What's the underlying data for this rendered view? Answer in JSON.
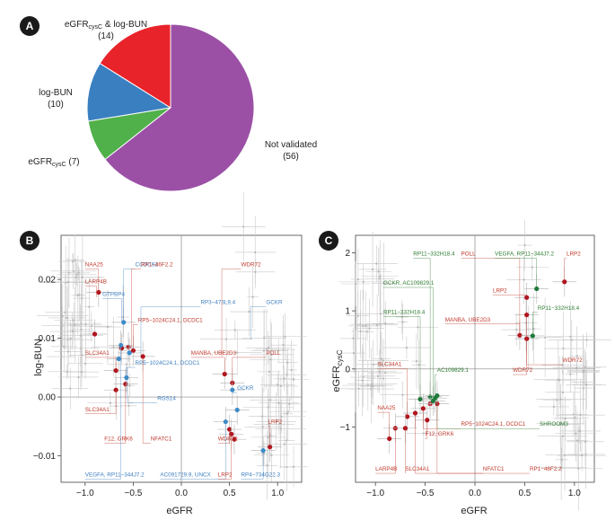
{
  "colors": {
    "red": "#e8232a",
    "blue": "#3a7fc0",
    "green": "#50b04a",
    "purple": "#9b50a6",
    "dark_red": "#b0141e",
    "mid_blue": "#3e8cc8",
    "dark_green": "#1d7a3a",
    "red_label": "#c0392b",
    "blue_label": "#3e7fbf",
    "green_label": "#2e7d32",
    "panel_badge": "#1a1a1a"
  },
  "chart_data": [
    {
      "panel": "A",
      "type": "pie",
      "slices": [
        {
          "key": "eGFRcysC & log-BUN",
          "label_main": "eGFR",
          "label_sub": "cysC",
          "label_tail": " & log-BUN",
          "count_label": "(14)",
          "value": 14,
          "color": "#e8232a"
        },
        {
          "key": "log-BUN",
          "label_main": "log-BUN",
          "label_sub": "",
          "label_tail": "",
          "count_label": "(10)",
          "value": 10,
          "color": "#3a7fc0"
        },
        {
          "key": "eGFRcysC",
          "label_main": "eGFR",
          "label_sub": "cysC",
          "label_tail": " (7)",
          "count_label": "",
          "value": 7,
          "color": "#50b04a"
        },
        {
          "key": "Not validated",
          "label_main": "Not validated",
          "label_sub": "",
          "label_tail": "",
          "count_label": "(56)",
          "value": 56,
          "color": "#9b50a6"
        }
      ]
    },
    {
      "panel": "B",
      "type": "scatter",
      "xlabel": "eGFR",
      "ylabel": "log-BUN",
      "xlim": [
        -1.25,
        1.25
      ],
      "ylim": [
        -0.0145,
        0.0275
      ],
      "xticks": [
        -1.0,
        -0.5,
        0.0,
        0.5,
        1.0
      ],
      "xtick_labels": [
        "−1.0",
        "−0.5",
        "0.0",
        "0.5",
        "1.0"
      ],
      "yticks": [
        -0.01,
        0.0,
        0.01,
        0.02
      ],
      "ytick_labels": [
        "−0.01",
        "0.00",
        "0.01",
        "0.02"
      ],
      "points": [
        {
          "x": -0.86,
          "y": 0.0178,
          "group": "red"
        },
        {
          "x": -0.9,
          "y": 0.0107,
          "group": "red"
        },
        {
          "x": -0.55,
          "y": 0.0085,
          "group": "red"
        },
        {
          "x": -0.5,
          "y": 0.0079,
          "group": "red"
        },
        {
          "x": -0.4,
          "y": 0.0069,
          "group": "red"
        },
        {
          "x": -0.62,
          "y": 0.0083,
          "group": "red"
        },
        {
          "x": -0.68,
          "y": 0.0045,
          "group": "red"
        },
        {
          "x": -0.58,
          "y": 0.0022,
          "group": "red"
        },
        {
          "x": -0.68,
          "y": 0.0012,
          "group": "red"
        },
        {
          "x": 0.45,
          "y": 0.0039,
          "group": "red"
        },
        {
          "x": 0.53,
          "y": 0.0024,
          "group": "red"
        },
        {
          "x": 0.5,
          "y": -0.0055,
          "group": "red"
        },
        {
          "x": 0.52,
          "y": -0.0063,
          "group": "red"
        },
        {
          "x": 0.55,
          "y": -0.0072,
          "group": "red"
        },
        {
          "x": 0.92,
          "y": -0.0085,
          "group": "red"
        },
        {
          "x": -0.6,
          "y": 0.0127,
          "group": "blue"
        },
        {
          "x": -0.63,
          "y": 0.0088,
          "group": "blue"
        },
        {
          "x": -0.54,
          "y": 0.0075,
          "group": "blue"
        },
        {
          "x": -0.65,
          "y": 0.0065,
          "group": "blue"
        },
        {
          "x": -0.57,
          "y": 0.0033,
          "group": "blue"
        },
        {
          "x": 0.46,
          "y": -0.0042,
          "group": "blue"
        },
        {
          "x": 0.53,
          "y": 0.0012,
          "group": "blue"
        },
        {
          "x": 0.58,
          "y": -0.0022,
          "group": "blue"
        },
        {
          "x": 0.85,
          "y": -0.0091,
          "group": "blue"
        }
      ],
      "labels": [
        {
          "text": "NAA25",
          "group": "red",
          "x": -1.0,
          "y": 0.0222,
          "px": -0.86,
          "py": 0.0178
        },
        {
          "text": "LARP4B",
          "group": "red",
          "x": -1.0,
          "y": 0.0193,
          "px": -0.88,
          "py": 0.017
        },
        {
          "text": "CCDC63",
          "group": "blue",
          "x": -0.48,
          "y": 0.0222,
          "px": -0.6,
          "py": 0.0127
        },
        {
          "text": "RP1−46F2.2",
          "group": "red",
          "x": -0.42,
          "y": 0.0222,
          "px": -0.52,
          "py": 0.0085
        },
        {
          "text": "GTPBP4",
          "group": "blue",
          "x": -0.82,
          "y": 0.0172,
          "px": -0.62,
          "py": 0.0129
        },
        {
          "text": "RP5−1024C24.1, DCDC1",
          "group": "red",
          "x": -0.45,
          "y": 0.0128,
          "px": -0.5,
          "py": 0.0079
        },
        {
          "text": "RP3−473L9.4",
          "group": "blue",
          "x": 0.2,
          "y": 0.0158,
          "px": -0.42,
          "py": 0.007
        },
        {
          "text": "GCKR",
          "group": "blue",
          "x": 0.88,
          "y": 0.0158,
          "px": 0.72,
          "py": 0.0098
        },
        {
          "text": "WDR72",
          "group": "red",
          "x": 0.62,
          "y": 0.0222,
          "px": 0.42,
          "py": 0.0069
        },
        {
          "text": "MANBA, UBE2D3",
          "group": "red",
          "x": 0.1,
          "y": 0.0072,
          "px": 0.45,
          "py": 0.0039
        },
        {
          "text": "POLL",
          "group": "red",
          "x": 0.88,
          "y": 0.0072,
          "px": 0.53,
          "py": 0.0024
        },
        {
          "text": "SLC34A1",
          "group": "red",
          "x": -1.0,
          "y": 0.0072,
          "px": -0.68,
          "py": 0.0045
        },
        {
          "text": "RP5−1024C24.1, DCDC1",
          "group": "blue",
          "x": -0.48,
          "y": 0.0055,
          "px": -0.57,
          "py": 0.0033
        },
        {
          "text": "GCKR",
          "group": "blue",
          "x": 0.58,
          "y": 0.0012,
          "px": 0.53,
          "py": 0.0012
        },
        {
          "text": "RGS14",
          "group": "blue",
          "x": -0.25,
          "y": -0.0005,
          "px": -0.56,
          "py": 0.005
        },
        {
          "text": "SLC34A1",
          "group": "red",
          "x": -1.0,
          "y": -0.0024,
          "px": -0.68,
          "py": 0.0012
        },
        {
          "text": "F12, GRK6",
          "group": "red",
          "x": -0.8,
          "y": -0.0074,
          "px": -0.58,
          "py": 0.0022
        },
        {
          "text": "NFATC1",
          "group": "red",
          "x": -0.32,
          "y": -0.0074,
          "px": -0.4,
          "py": 0.0069
        },
        {
          "text": "WDR72",
          "group": "red",
          "x": 0.38,
          "y": -0.0074,
          "px": 0.5,
          "py": -0.0055
        },
        {
          "text": "LRP2",
          "group": "red",
          "x": 0.9,
          "y": -0.0045,
          "px": 0.92,
          "py": -0.0085
        },
        {
          "text": "VEGFA, RP11−344J7.2",
          "group": "blue",
          "x": -1.0,
          "y": -0.0135,
          "px": -0.63,
          "py": 0.0088
        },
        {
          "text": "AC091729.9, UNCX",
          "group": "blue",
          "x": -0.22,
          "y": -0.0135,
          "px": 0.46,
          "py": -0.0042
        },
        {
          "text": "LRP2",
          "group": "red",
          "x": 0.38,
          "y": -0.0135,
          "px": 0.52,
          "py": -0.0063
        },
        {
          "text": "RP4−734G22.3",
          "group": "blue",
          "x": 0.62,
          "y": -0.0135,
          "px": 0.85,
          "py": -0.0091
        }
      ]
    },
    {
      "panel": "C",
      "type": "scatter",
      "xlabel": "eGFR",
      "ylabel_main": "eGFR",
      "ylabel_sub": "cysC",
      "xlim": [
        -1.2,
        1.2
      ],
      "ylim": [
        -1.95,
        2.3
      ],
      "xticks": [
        -1.0,
        -0.5,
        0.0,
        0.5,
        1.0
      ],
      "xtick_labels": [
        "−1.0",
        "−0.5",
        "0.0",
        "0.5",
        "1.0"
      ],
      "yticks": [
        -1,
        0,
        1,
        2
      ],
      "ytick_labels": [
        "−1",
        "0",
        "1",
        "2"
      ],
      "points": [
        {
          "x": 0.9,
          "y": 1.5,
          "group": "red"
        },
        {
          "x": 0.52,
          "y": 1.23,
          "group": "red"
        },
        {
          "x": 0.52,
          "y": 0.93,
          "group": "red"
        },
        {
          "x": 0.45,
          "y": 0.58,
          "group": "red"
        },
        {
          "x": 0.52,
          "y": 0.52,
          "group": "red"
        },
        {
          "x": -0.86,
          "y": -1.2,
          "group": "red"
        },
        {
          "x": -0.8,
          "y": -1.02,
          "group": "red"
        },
        {
          "x": -0.68,
          "y": -0.82,
          "group": "red"
        },
        {
          "x": -0.6,
          "y": -0.76,
          "group": "red"
        },
        {
          "x": -0.52,
          "y": -0.68,
          "group": "red"
        },
        {
          "x": -0.45,
          "y": -0.6,
          "group": "red"
        },
        {
          "x": -0.48,
          "y": -0.88,
          "group": "red"
        },
        {
          "x": -0.7,
          "y": -1.02,
          "group": "red"
        },
        {
          "x": -0.38,
          "y": -0.6,
          "group": "red"
        },
        {
          "x": 0.62,
          "y": 1.38,
          "group": "green"
        },
        {
          "x": 0.58,
          "y": 0.57,
          "group": "green"
        },
        {
          "x": -0.55,
          "y": -0.52,
          "group": "green"
        },
        {
          "x": -0.45,
          "y": -0.48,
          "group": "green"
        },
        {
          "x": -0.4,
          "y": -0.5,
          "group": "green"
        },
        {
          "x": -0.38,
          "y": -0.46,
          "group": "green"
        },
        {
          "x": -0.42,
          "y": -0.55,
          "group": "green"
        }
      ],
      "labels": [
        {
          "text": "RP11−332H18.4",
          "group": "green",
          "x": -0.62,
          "y": 1.95,
          "px": -0.45,
          "py": -0.48
        },
        {
          "text": "POLL",
          "group": "red",
          "x": -0.14,
          "y": 1.95,
          "px": 0.45,
          "py": 0.58
        },
        {
          "text": "VEGFA, RP11−344J7.2",
          "group": "green",
          "x": 0.2,
          "y": 1.95,
          "px": 0.62,
          "py": 1.38
        },
        {
          "text": "LRP2",
          "group": "red",
          "x": 0.92,
          "y": 1.95,
          "px": 0.9,
          "py": 1.5
        },
        {
          "text": "GCKR, AC109829.1",
          "group": "green",
          "x": -0.92,
          "y": 1.45,
          "px": -0.42,
          "py": -0.55
        },
        {
          "text": "LRP2",
          "group": "red",
          "x": 0.18,
          "y": 1.32,
          "px": 0.52,
          "py": 1.23
        },
        {
          "text": "RP11−332H18.4",
          "group": "green",
          "x": -0.92,
          "y": 0.95,
          "px": -0.55,
          "py": -0.52
        },
        {
          "text": "RP11−332H18.4",
          "group": "green",
          "x": 0.63,
          "y": 1.02,
          "px": 0.58,
          "py": 0.57
        },
        {
          "text": "MANBA, UBE2D3",
          "group": "red",
          "x": -0.3,
          "y": 0.82,
          "px": 0.45,
          "py": 0.58
        },
        {
          "text": "SLC34A1",
          "group": "red",
          "x": -0.98,
          "y": 0.05,
          "px": -0.68,
          "py": -0.82
        },
        {
          "text": "AC109829.1",
          "group": "green",
          "x": -0.38,
          "y": -0.05,
          "px": -0.4,
          "py": -0.5
        },
        {
          "text": "WDR72",
          "group": "red",
          "x": 0.38,
          "y": -0.05,
          "px": 0.52,
          "py": 0.52
        },
        {
          "text": "WDR72",
          "group": "red",
          "x": 0.88,
          "y": 0.12,
          "px": 0.52,
          "py": 0.93
        },
        {
          "text": "NAA25",
          "group": "red",
          "x": -0.98,
          "y": -0.7,
          "px": -0.86,
          "py": -1.2
        },
        {
          "text": "RP5−1024C24.1, DCDC1",
          "group": "red",
          "x": -0.14,
          "y": -0.98,
          "px": -0.52,
          "py": -0.68
        },
        {
          "text": "SHROOM3",
          "group": "green",
          "x": 0.65,
          "y": -0.98,
          "px": -0.38,
          "py": -0.46
        },
        {
          "text": "F12, GRK6",
          "group": "red",
          "x": -0.5,
          "y": -1.15,
          "px": -0.48,
          "py": -0.88
        },
        {
          "text": "LARP4B",
          "group": "red",
          "x": -1.0,
          "y": -1.75,
          "px": -0.8,
          "py": -1.02
        },
        {
          "text": "SLC34A1",
          "group": "red",
          "x": -0.7,
          "y": -1.75,
          "px": -0.7,
          "py": -1.02
        },
        {
          "text": "NFATC1",
          "group": "red",
          "x": 0.08,
          "y": -1.75,
          "px": -0.38,
          "py": -0.6
        },
        {
          "text": "RP1−46F2.2",
          "group": "red",
          "x": 0.55,
          "y": -1.75,
          "px": -0.6,
          "py": -0.76
        }
      ]
    }
  ]
}
